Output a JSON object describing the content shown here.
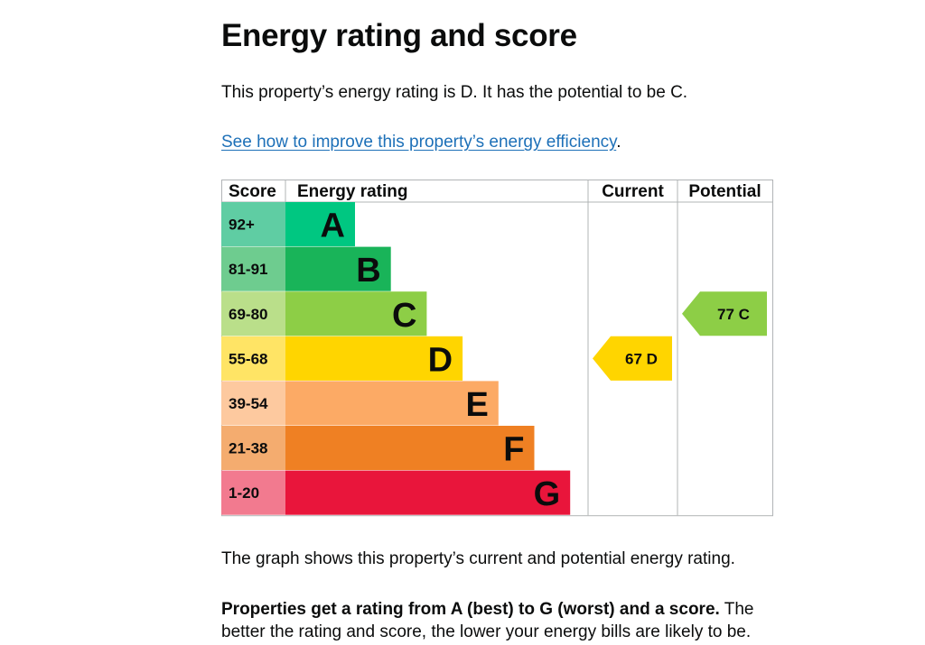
{
  "page": {
    "title": "Energy rating and score",
    "intro": "This property’s energy rating is D. It has the potential to be C.",
    "improve_link": "See how to improve this property’s energy efficiency",
    "improve_link_suffix": ".",
    "graph_caption": "The graph shows this property’s current and potential energy rating.",
    "rating_info_bold": "Properties get a rating from A (best) to G (worst) and a score.",
    "rating_info_rest": " The better the rating and score, the lower your energy bills are likely to be."
  },
  "chart_data": {
    "type": "table",
    "headers": {
      "score": "Score",
      "rating": "Energy rating",
      "current": "Current",
      "potential": "Potential"
    },
    "bands": [
      {
        "band": "A",
        "score": "92+",
        "bar_color": "#00c781",
        "score_color": "#5fcda3"
      },
      {
        "band": "B",
        "score": "81-91",
        "bar_color": "#19b459",
        "score_color": "#6ecc8f"
      },
      {
        "band": "C",
        "score": "69-80",
        "bar_color": "#8dce46",
        "score_color": "#badf8a"
      },
      {
        "band": "D",
        "score": "55-68",
        "bar_color": "#ffd500",
        "score_color": "#ffe465"
      },
      {
        "band": "E",
        "score": "39-54",
        "bar_color": "#fcaa65",
        "score_color": "#fdc99f"
      },
      {
        "band": "F",
        "score": "21-38",
        "bar_color": "#ef8023",
        "score_color": "#f4ac6f"
      },
      {
        "band": "G",
        "score": "1-20",
        "bar_color": "#e9153b",
        "score_color": "#f27a8f"
      }
    ],
    "current": {
      "score": 67,
      "band": "D",
      "label": "67  D",
      "color": "#ffd500"
    },
    "potential": {
      "score": 77,
      "band": "C",
      "label": "77  C",
      "color": "#8dce46"
    }
  }
}
